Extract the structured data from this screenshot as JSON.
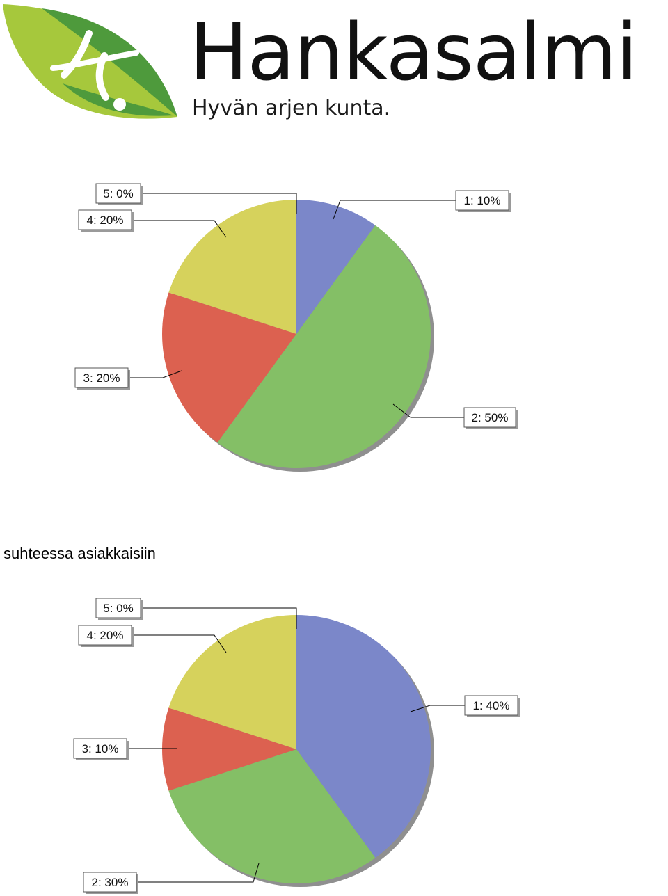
{
  "header": {
    "brand_name": "Hankasalmi",
    "tagline": "Hyvän arjen kunta.",
    "logo_icon": "leaf-logo-icon",
    "colors": {
      "leaf_dark": "#4e9a3c",
      "leaf_light": "#a6c83c",
      "leaf_white": "#ffffff"
    }
  },
  "section_heading": "suhteessa asiakkaisiin",
  "chart_data": [
    {
      "type": "pie",
      "categories": [
        "1",
        "2",
        "3",
        "4",
        "5"
      ],
      "values": [
        10,
        50,
        20,
        20,
        0
      ],
      "labels": [
        "1: 10%",
        "2: 50%",
        "3: 20%",
        "4: 20%",
        "5: 0%"
      ],
      "colors": [
        "#7b87c9",
        "#84bf66",
        "#dc6150",
        "#d6d25c",
        "#b0b0b0"
      ],
      "start_angle_deg": 0,
      "direction": "clockwise"
    },
    {
      "type": "pie",
      "categories": [
        "1",
        "2",
        "3",
        "4",
        "5"
      ],
      "values": [
        40,
        30,
        10,
        20,
        0
      ],
      "labels": [
        "1: 40%",
        "2: 30%",
        "3: 10%",
        "4: 20%",
        "5: 0%"
      ],
      "colors": [
        "#7b87c9",
        "#84bf66",
        "#dc6150",
        "#d6d25c",
        "#b0b0b0"
      ],
      "start_angle_deg": 0,
      "direction": "clockwise"
    }
  ]
}
